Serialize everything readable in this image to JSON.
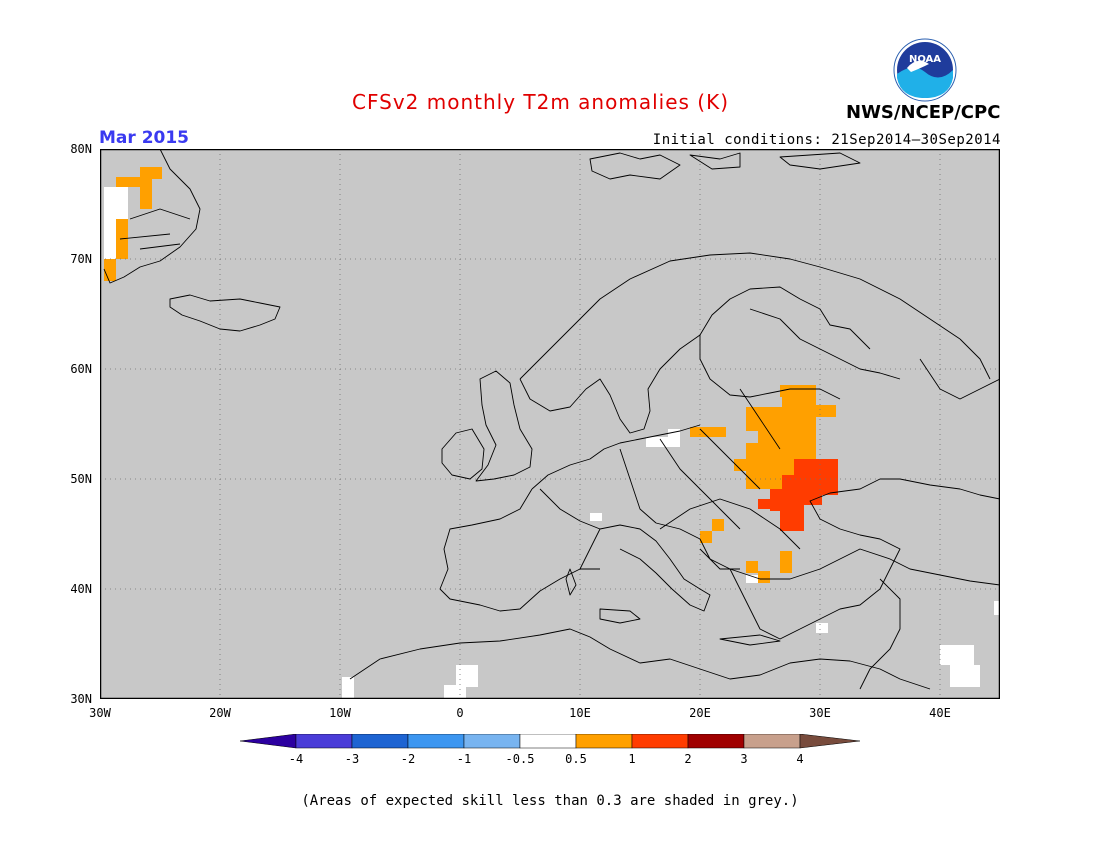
{
  "header": {
    "title": "CFSv2 monthly T2m anomalies (K)",
    "month": "Mar 2015",
    "initial_conditions": "Initial conditions: 21Sep2014–30Sep2014",
    "organization": "NWS/NCEP/CPC",
    "logo_text": "NOAA"
  },
  "colors": {
    "title": "#ff0000",
    "month": "#3030ff",
    "land_grey": "#c8c8c8",
    "anom_pos_0_5_1": "#ffa000",
    "anom_pos_1_2": "#ff3c00",
    "anom_neutral": "#ffffff"
  },
  "map": {
    "lat_labels": [
      "80N",
      "70N",
      "60N",
      "50N",
      "40N",
      "30N"
    ],
    "lon_labels": [
      "30W",
      "20W",
      "10W",
      "0",
      "10E",
      "20E",
      "30E",
      "40E"
    ]
  },
  "colorbar": {
    "labels": [
      "-4",
      "-3",
      "-2",
      "-1",
      "-0.5",
      "0.5",
      "1",
      "2",
      "3",
      "4"
    ],
    "colors": [
      "#2c00a0",
      "#4a3cd8",
      "#1e64d2",
      "#3c96f0",
      "#78b4f0",
      "#ffffff",
      "#ffa000",
      "#ff3c00",
      "#a00000",
      "#c8a08c",
      "#784b3c"
    ]
  },
  "note": "(Areas of expected skill less than 0.3 are shaded in grey.)"
}
